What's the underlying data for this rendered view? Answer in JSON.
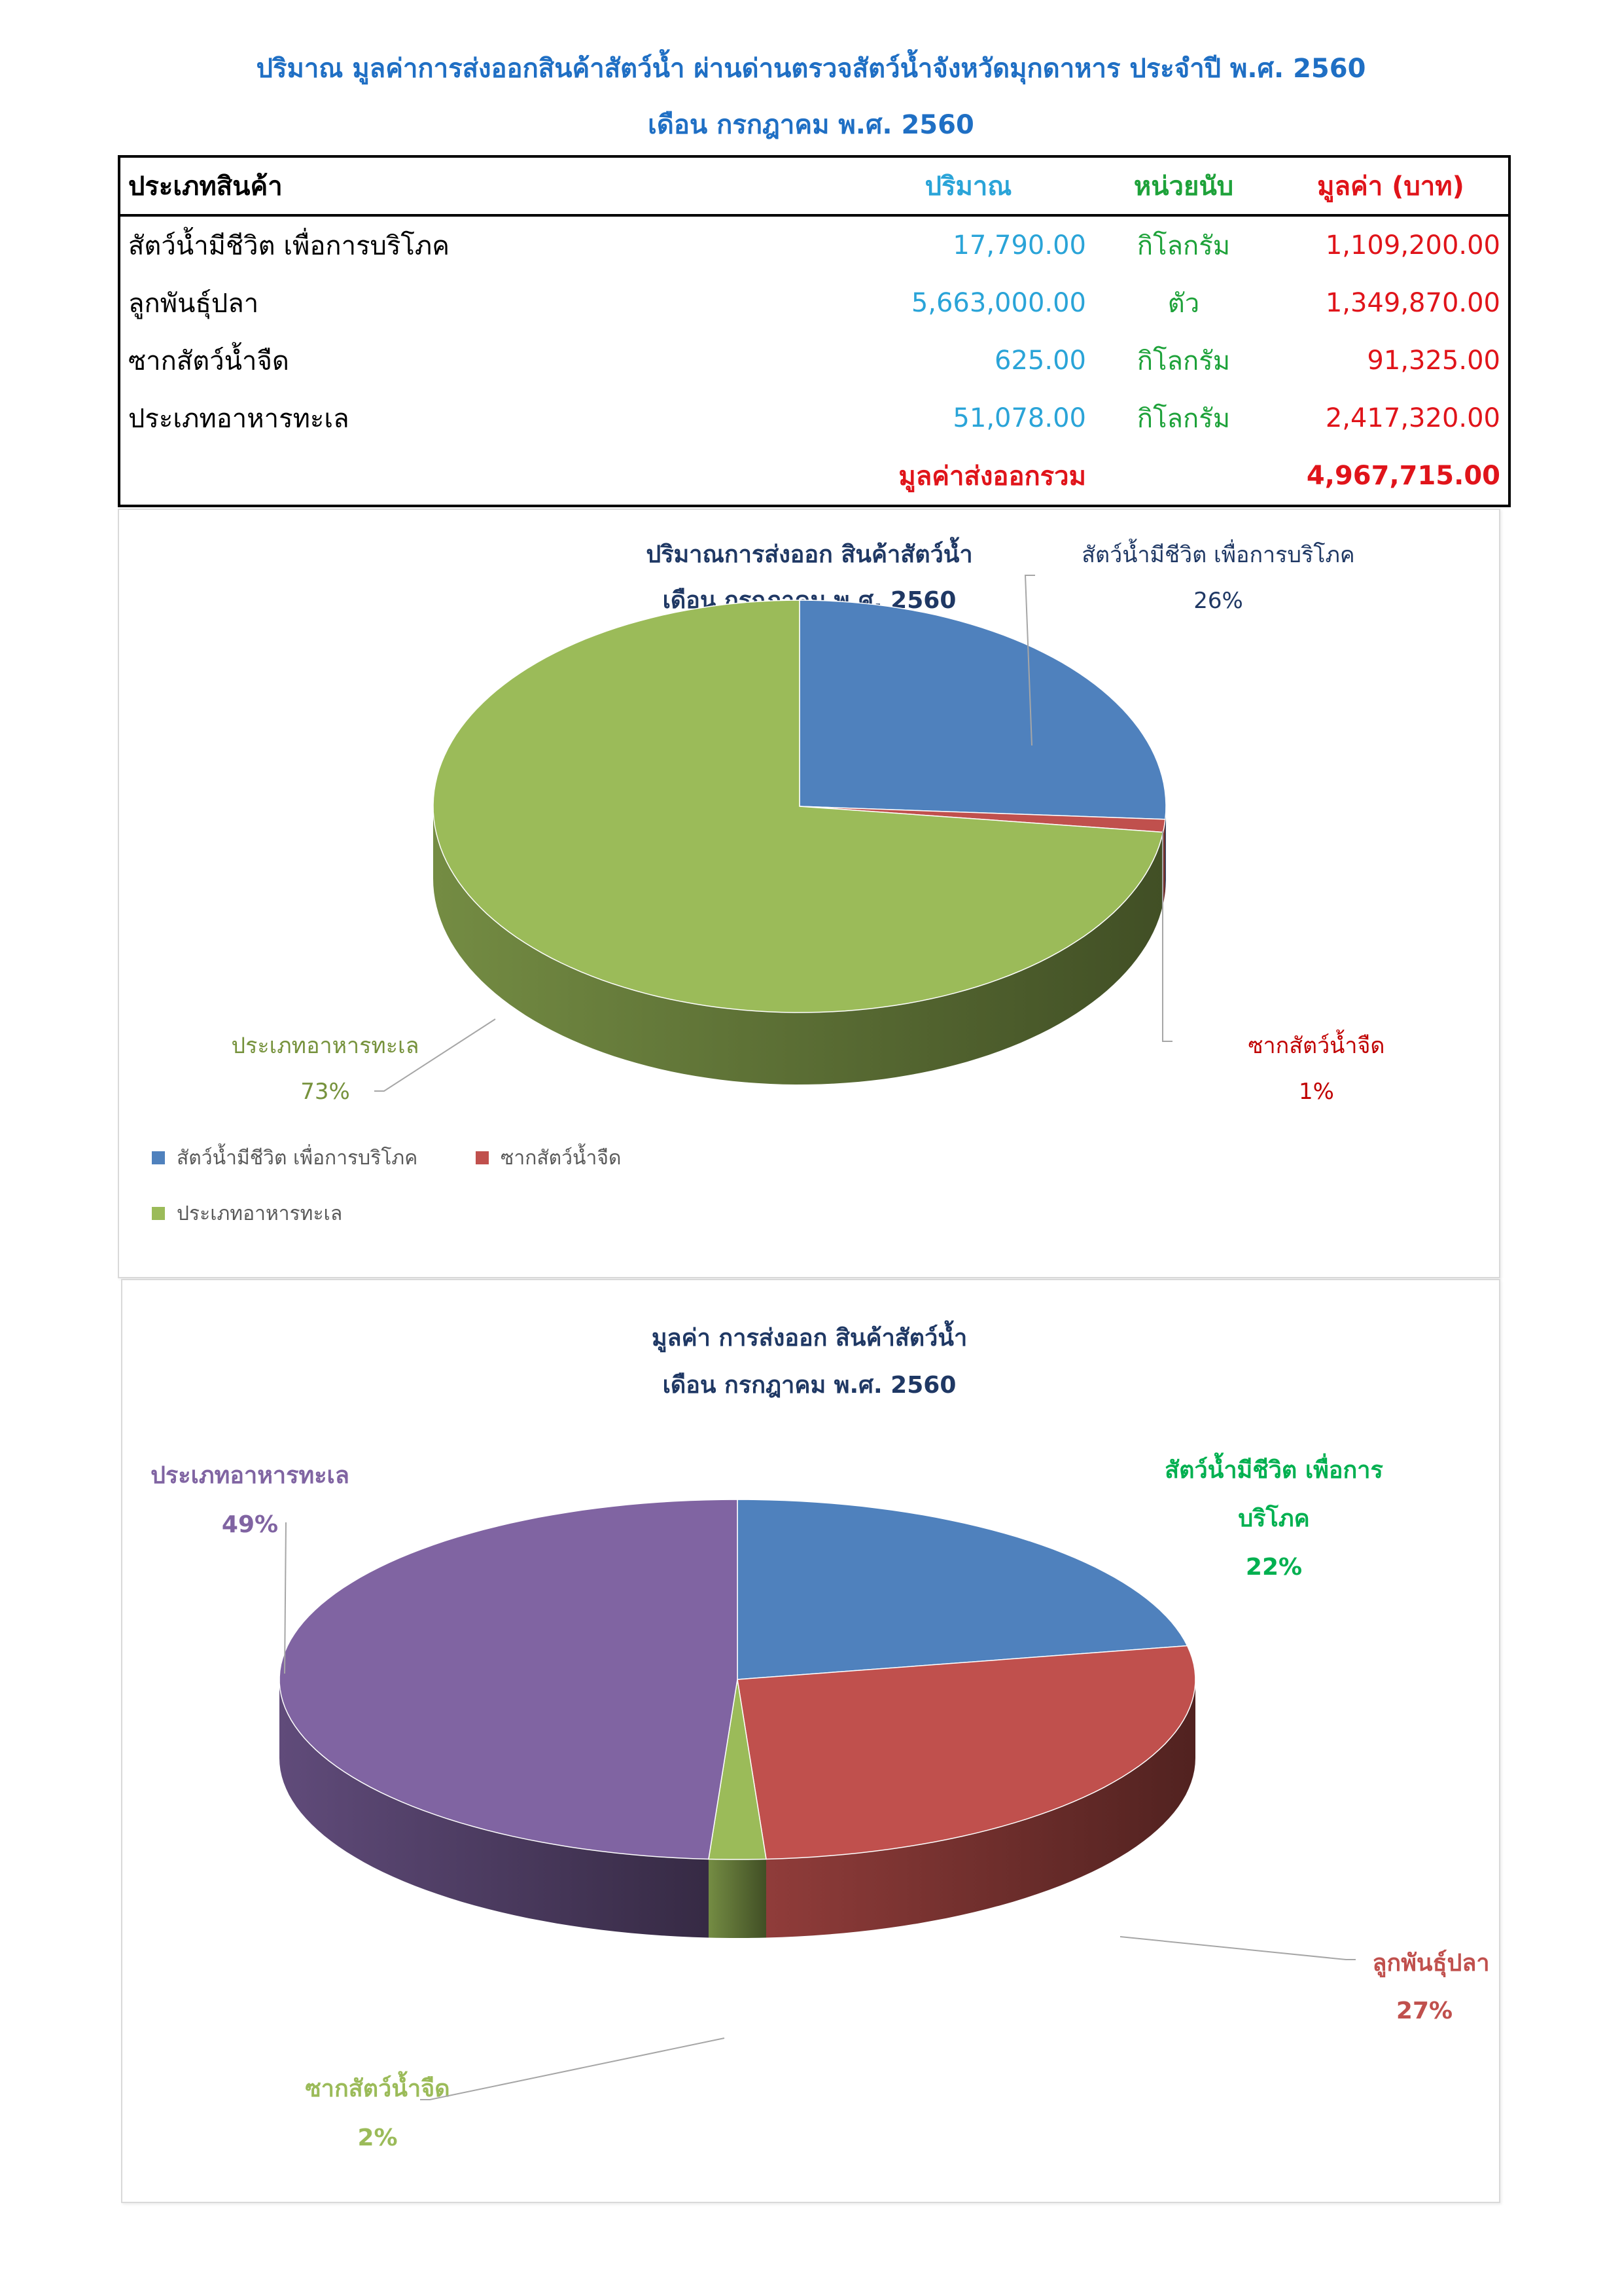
{
  "header": {
    "title_line1": "ปริมาณ มูลค่าการส่งออกสินค้าสัตว์น้ำ ผ่านด่านตรวจสัตว์น้ำจังหวัดมุกดาหาร ประจำปี พ.ศ. 2560",
    "title_line2": "เดือน กรกฎาคม พ.ศ. 2560"
  },
  "table": {
    "headers": {
      "category": "ประเภทสินค้า",
      "quantity": "ปริมาณ",
      "unit": "หน่วยนับ",
      "value": "มูลค่า (บาท)"
    },
    "rows": [
      {
        "name": "สัตว์น้ำมีชีวิต เพื่อการบริโภค",
        "quantity": "17,790.00",
        "unit": "กิโลกรัม",
        "value": "1,109,200.00"
      },
      {
        "name": "ลูกพันธุ์ปลา",
        "quantity": "5,663,000.00",
        "unit": "ตัว",
        "value": "1,349,870.00"
      },
      {
        "name": "ซากสัตว์น้ำจืด",
        "quantity": "625.00",
        "unit": "กิโลกรัม",
        "value": "91,325.00"
      },
      {
        "name": "ประเภทอาหารทะเล",
        "quantity": "51,078.00",
        "unit": "กิโลกรัม",
        "value": "2,417,320.00"
      }
    ],
    "total_label": "มูลค่าส่งออกรวม",
    "total_value": "4,967,715.00"
  },
  "chart_data": [
    {
      "type": "pie",
      "title": "ปริมาณการส่งออก สินค้าสัตว์น้ำ",
      "subtitle": "เดือน กรกฎาคม พ.ศ. 2560",
      "categories": [
        "สัตว์น้ำมีชีวิต เพื่อการบริโภค",
        "ซากสัตว์น้ำจืด",
        "ประเภทอาหารทะเล"
      ],
      "values": [
        26,
        1,
        73
      ],
      "labels": [
        "26%",
        "1%",
        "73%"
      ],
      "colors": [
        "#4f81bd",
        "#c0504d",
        "#9bbb59"
      ],
      "label_colors": [
        "#1f3864",
        "#c00000",
        "#76923c"
      ],
      "title_color": "#1f3864",
      "legend": "bottom-left"
    },
    {
      "type": "pie",
      "title": "มูลค่า การส่งออก สินค้าสัตว์น้ำ",
      "subtitle": "เดือน กรกฎาคม  พ.ศ. 2560",
      "categories": [
        "สัตว์น้ำมีชีวิต เพื่อการบริโภค",
        "ลูกพันธุ์ปลา",
        "ซากสัตว์น้ำจืด",
        "ประเภทอาหารทะเล"
      ],
      "values": [
        22,
        27,
        2,
        49
      ],
      "labels": [
        "22%",
        "27%",
        "2%",
        "49%"
      ],
      "colors": [
        "#4f81bd",
        "#c0504d",
        "#9bbb59",
        "#8064a2"
      ],
      "label_colors": [
        "#00b050",
        "#c0504d",
        "#9bbb59",
        "#8064a2"
      ],
      "title_color": "#1f3864",
      "legend": "none"
    }
  ]
}
